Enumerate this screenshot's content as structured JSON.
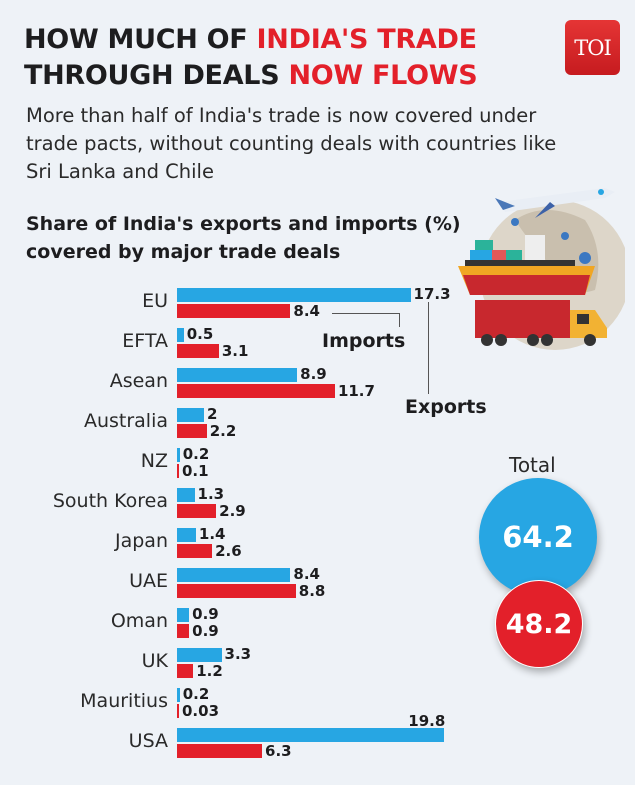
{
  "header": {
    "title_line1_dark": "HOW MUCH OF ",
    "title_line1_red": "INDIA'S TRADE",
    "title_line2_dark": "THROUGH DEALS ",
    "title_line2_red": "NOW FLOWS",
    "logo": "TOI",
    "dek": "More than half of India's trade is now covered under trade pacts, without counting deals with countries like Sri Lanka and Chile"
  },
  "chart_title": "Share of India's exports and imports (%) covered by major trade deals",
  "legend": {
    "imports": "Imports",
    "exports": "Exports"
  },
  "totals": {
    "label": "Total",
    "exports": "64.2",
    "imports": "48.2"
  },
  "colors": {
    "exports": "#27a6e3",
    "imports": "#e3202a",
    "accent_red": "#e3202a"
  },
  "chart_data": {
    "type": "bar",
    "orientation": "horizontal",
    "title": "Share of India's exports and imports (%) covered by major trade deals",
    "xlabel": "",
    "ylabel": "",
    "grid": false,
    "categories": [
      "EU",
      "EFTA",
      "Asean",
      "Australia",
      "NZ",
      "South Korea",
      "Japan",
      "UAE",
      "Oman",
      "UK",
      "Mauritius",
      "USA"
    ],
    "series": [
      {
        "name": "Exports",
        "color": "#27a6e3",
        "values": [
          17.3,
          0.5,
          8.9,
          2,
          0.2,
          1.3,
          1.4,
          8.4,
          0.9,
          3.3,
          0.2,
          19.8
        ]
      },
      {
        "name": "Imports",
        "color": "#e3202a",
        "values": [
          8.4,
          3.1,
          11.7,
          2.2,
          0.1,
          2.9,
          2.6,
          8.8,
          0.9,
          1.2,
          0.03,
          6.3
        ]
      }
    ],
    "value_labels": {
      "exports": [
        "17.3",
        "0.5",
        "8.9",
        "2",
        "0.2",
        "1.3",
        "1.4",
        "8.4",
        "0.9",
        "3.3",
        "0.2",
        "19.8"
      ],
      "imports": [
        "8.4",
        "3.1",
        "11.7",
        "2.2",
        "0.1",
        "2.9",
        "2.6",
        "8.8",
        "0.9",
        "1.2",
        "0.03",
        "6.3"
      ]
    },
    "totals": {
      "Exports": 64.2,
      "Imports": 48.2
    },
    "legend_position": "annotated leader lines"
  }
}
